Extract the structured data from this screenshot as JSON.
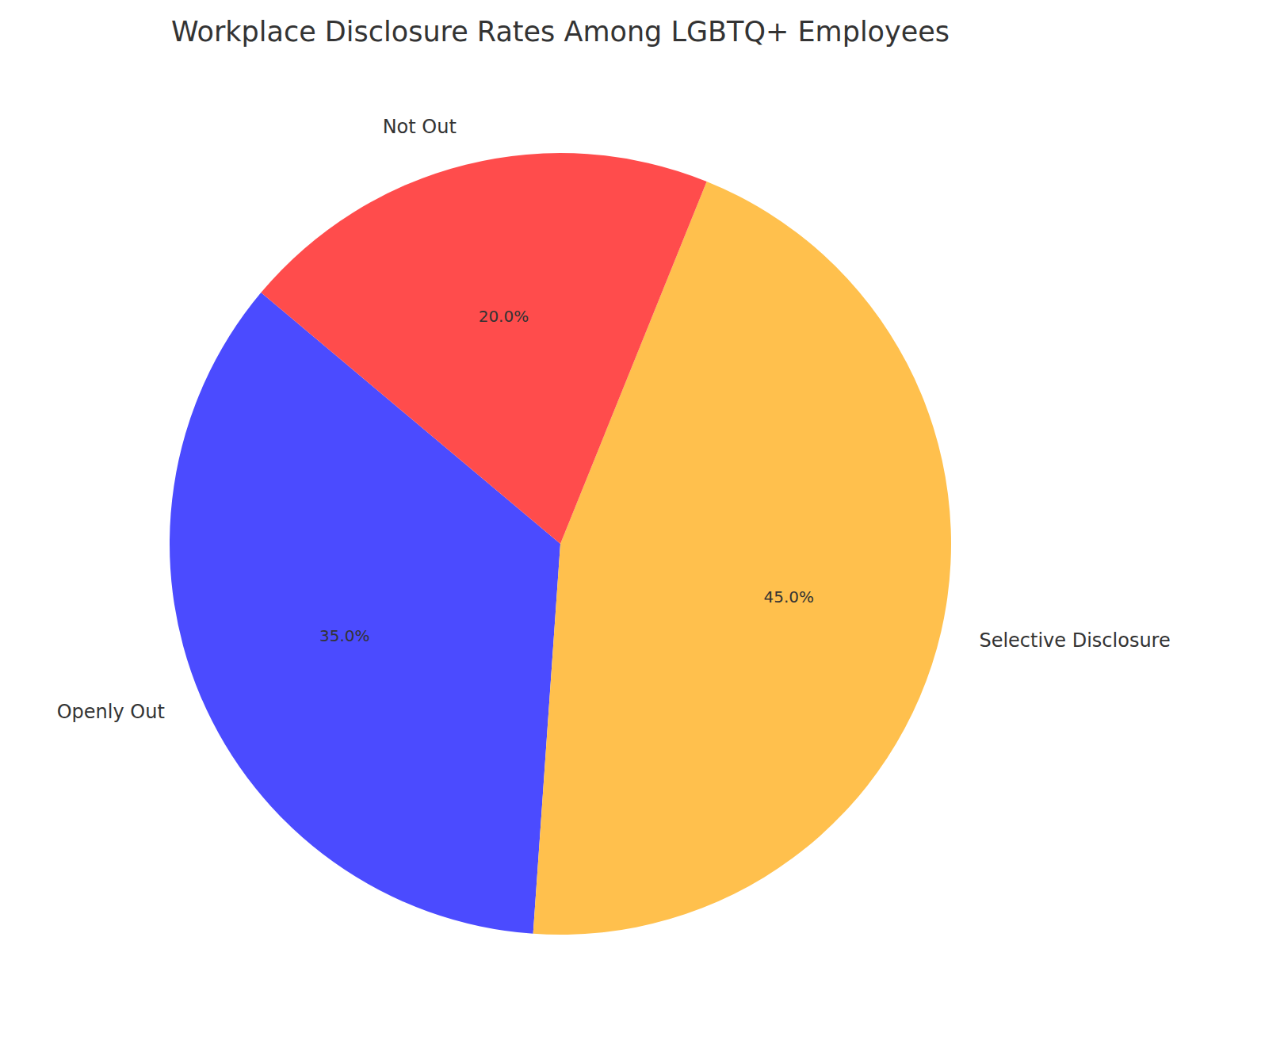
{
  "chart_data": {
    "type": "pie",
    "title": "Workplace Disclosure Rates Among LGBTQ+ Employees",
    "categories": [
      "Openly Out",
      "Selective Disclosure",
      "Not Out"
    ],
    "values": [
      35,
      45,
      20
    ],
    "value_labels": [
      "35.0%",
      "45.0%",
      "20.0%"
    ],
    "colors": [
      "#4b4bff",
      "#ffc04d",
      "#ff4c4c"
    ],
    "data_labels": true
  }
}
